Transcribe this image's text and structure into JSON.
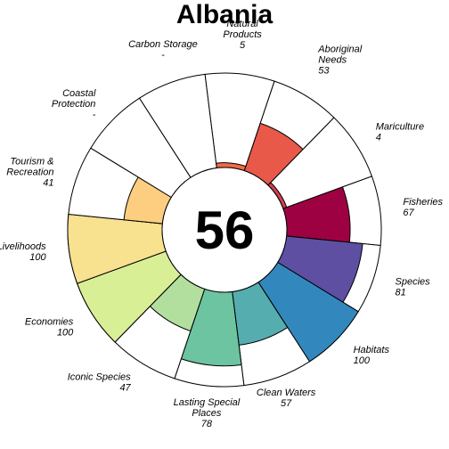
{
  "chart_data": {
    "type": "flower",
    "title": "Albania",
    "center_score": "56",
    "max_value": 100,
    "petals": [
      {
        "name": "Fisheries",
        "value": 67,
        "display": "67",
        "color": "#9E0142"
      },
      {
        "name": "Species",
        "value": 81,
        "display": "81",
        "color": "#5E4FA2"
      },
      {
        "name": "Habitats",
        "value": 100,
        "display": "100",
        "color": "#3288BD"
      },
      {
        "name": "Clean Waters",
        "value": 57,
        "display": "57",
        "color": "#56ADAF"
      },
      {
        "name": "Lasting Special Places",
        "value": 78,
        "display": "78",
        "color": "#6CC4A0"
      },
      {
        "name": "Iconic Species",
        "value": 47,
        "display": "47",
        "color": "#B2DF9E"
      },
      {
        "name": "Economies",
        "value": 100,
        "display": "100",
        "color": "#D9EF96"
      },
      {
        "name": "Livelihoods",
        "value": 100,
        "display": "100",
        "color": "#F8E18F"
      },
      {
        "name": "Tourism & Recreation",
        "value": 41,
        "display": "41",
        "color": "#FDCE7F"
      },
      {
        "name": "Coastal Protection",
        "value": null,
        "display": "-",
        "color": "#F8A05C"
      },
      {
        "name": "Carbon Storage",
        "value": null,
        "display": "-",
        "color": "#F47B4E"
      },
      {
        "name": "Natural Products",
        "value": 5,
        "display": "5",
        "color": "#F36A46"
      },
      {
        "name": "Aboriginal Needs",
        "value": 53,
        "display": "53",
        "color": "#E8594A"
      },
      {
        "name": "Mariculture",
        "value": 4,
        "display": "4",
        "color": "#D53E4F"
      }
    ]
  }
}
